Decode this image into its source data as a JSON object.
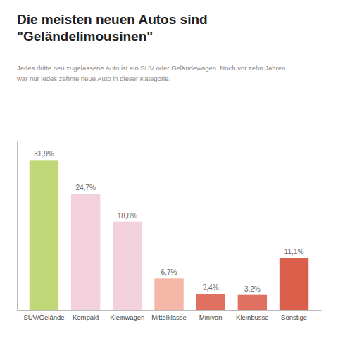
{
  "chart_data": {
    "type": "bar",
    "title": [
      "Die meisten neuen Autos sind",
      "\"Geländelimousinen\""
    ],
    "subtitle": [
      "Jedes dritte neu zugelassene Auto ist ein SUV oder Geländewagen. Noch vor zehn Jahren",
      "war nur jedes zehnte neue Auto in dieser Kategorie."
    ],
    "categories": [
      "SUV/Gelände",
      "Kompakt",
      "Kleinwagen",
      "Mittelklasse",
      "Minivan",
      "Kleinbusse",
      "Sonstige"
    ],
    "values": [
      31.9,
      24.7,
      18.8,
      6.7,
      3.4,
      3.2,
      11.1
    ],
    "value_labels": [
      "31,9%",
      "24,7%",
      "18,8%",
      "6,7%",
      "3,4%",
      "3,2%",
      "11,1%"
    ],
    "colors": [
      "#c0d878",
      "#f2d0dc",
      "#f2d0dc",
      "#f5b8a8",
      "#e07060",
      "#e07060",
      "#d95f4a"
    ],
    "ylim": [
      0,
      36
    ],
    "grid": false,
    "data_labels": true,
    "tick_labels": "x"
  }
}
